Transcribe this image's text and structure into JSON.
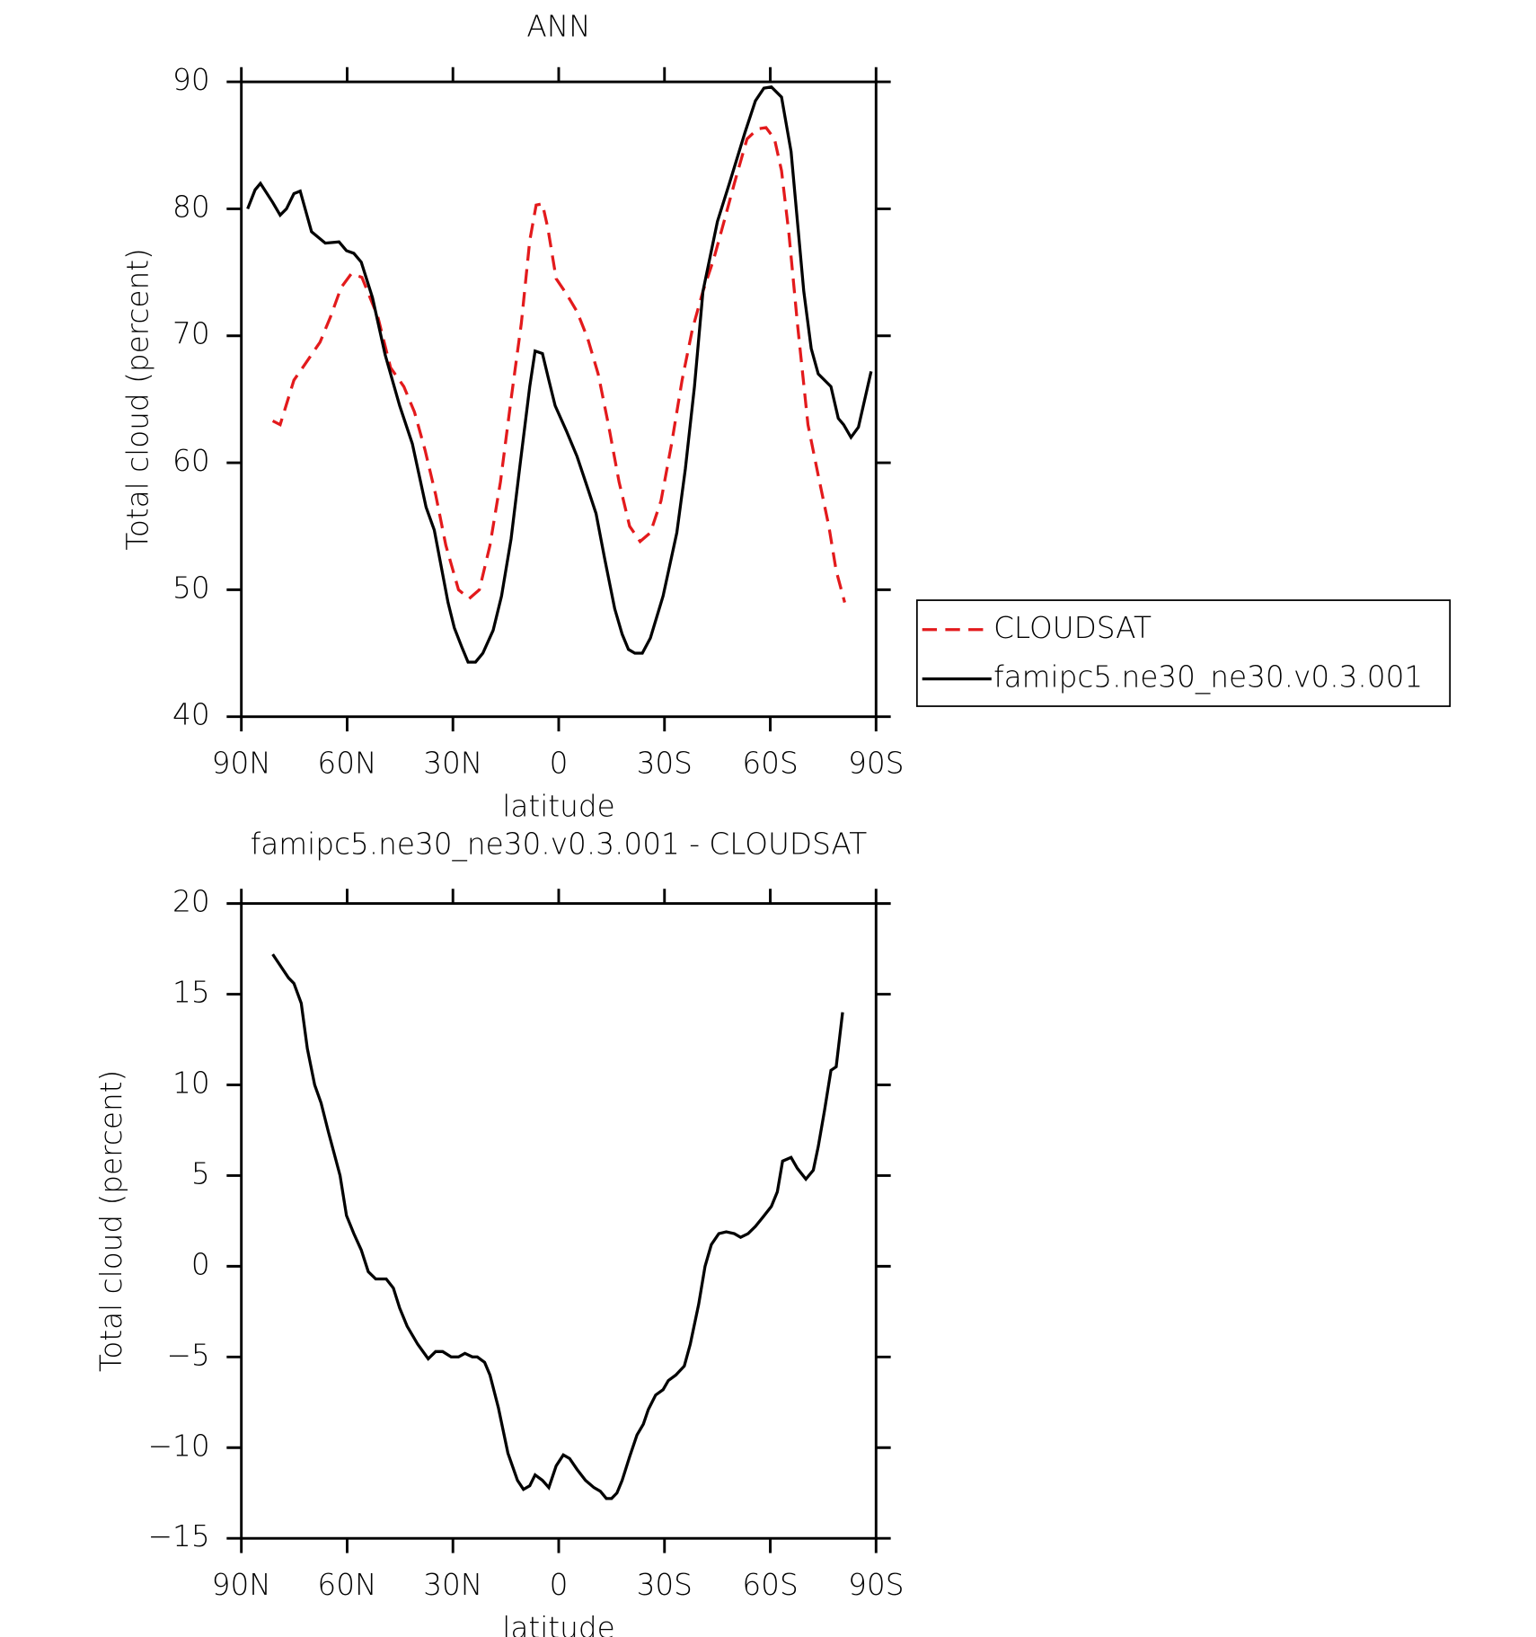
{
  "chart_data": [
    {
      "type": "line",
      "title": "ANN",
      "xlabel": "latitude",
      "ylabel": "Total cloud (percent)",
      "xlim": [
        90,
        -90
      ],
      "xticks": [
        {
          "value": 90,
          "label": "90N"
        },
        {
          "value": 60,
          "label": "60N"
        },
        {
          "value": 30,
          "label": "30N"
        },
        0,
        {
          "value": -30,
          "label": "30S"
        },
        {
          "value": -60,
          "label": "60S"
        },
        {
          "value": -90,
          "label": "90S"
        }
      ],
      "ylim": [
        40,
        90
      ],
      "yticks": [
        40,
        50,
        60,
        70,
        80,
        90
      ],
      "legend": "outside-right",
      "series": [
        {
          "name": "CLOUDSAT",
          "color": "#e31a1c",
          "dash": "dashed",
          "x": [
            81.1,
            79,
            75.1,
            72.1,
            67.7,
            64.7,
            61.7,
            58.8,
            55.8,
            51.3,
            47.7,
            43.9,
            40.9,
            37.9,
            34.9,
            32,
            28.4,
            25.4,
            22.5,
            19.5,
            16.5,
            13.5,
            10.6,
            8.2,
            6.4,
            4.6,
            3.1,
            0.7,
            -2.2,
            -5.2,
            -8.2,
            -11.2,
            -14.1,
            -17.1,
            -20.1,
            -23.1,
            -26,
            -29,
            -32,
            -35,
            -37.9,
            -40.9,
            -43.9,
            -46.9,
            -49.8,
            -53.4,
            -56.4,
            -58.8,
            -61.2,
            -63.2,
            -65.3,
            -67.7,
            -70.7,
            -73.6,
            -76.6,
            -78.7,
            -81.1
          ],
          "values": [
            63.3,
            63,
            66.5,
            67.7,
            69.5,
            71.5,
            73.8,
            74.9,
            74.6,
            71.5,
            67.5,
            66,
            64,
            61,
            57.5,
            53.5,
            50,
            49.3,
            50,
            53.5,
            58.5,
            65,
            71,
            77.5,
            80.3,
            80.4,
            78.5,
            74.5,
            73.3,
            71.9,
            69.8,
            67,
            63,
            58.5,
            55,
            53.8,
            54.5,
            57,
            61.5,
            66.5,
            70.5,
            73.5,
            76,
            79,
            82,
            85.5,
            86.3,
            86.4,
            85.5,
            83,
            78,
            71,
            63,
            59,
            55,
            51.5,
            49
          ]
        },
        {
          "name": "famipc5.ne30_ne30.v0.3.001",
          "color": "#000000",
          "dash": "solid",
          "x": [
            88.2,
            86.1,
            84.6,
            81.1,
            79,
            77.2,
            75.1,
            73.3,
            70.1,
            66.2,
            62.3,
            60.2,
            58.1,
            56,
            52.8,
            49.2,
            45.1,
            41.5,
            37.6,
            35.3,
            31.4,
            29.6,
            27.5,
            25.7,
            23.6,
            21.5,
            18.6,
            16.2,
            13.5,
            10.9,
            8.2,
            6.7,
            4.6,
            2.8,
            1,
            -2.2,
            -5.2,
            -8.2,
            -10.6,
            -13,
            -15.9,
            -18,
            -19.8,
            -21.6,
            -23.7,
            -26,
            -29.6,
            -33.5,
            -35.9,
            -38.5,
            -40.9,
            -45,
            -48.4,
            -52.8,
            -55.8,
            -58.2,
            -60.3,
            -63.2,
            -65.9,
            -69.5,
            -71.6,
            -73.6,
            -77.2,
            -79.3,
            -80.8,
            -82.9,
            -85,
            -88.6
          ],
          "values": [
            80,
            81.5,
            82,
            80.5,
            79.5,
            80,
            81.2,
            81.4,
            78.2,
            77.3,
            77.4,
            76.7,
            76.5,
            75.8,
            73,
            68.5,
            64.5,
            61.5,
            56.5,
            54.7,
            49,
            47,
            45.5,
            44.3,
            44.3,
            45,
            46.8,
            49.5,
            54,
            60,
            66,
            68.8,
            68.6,
            66.5,
            64.5,
            62.5,
            60.5,
            58,
            56,
            52.5,
            48.5,
            46.5,
            45.3,
            45,
            45,
            46.2,
            49.5,
            54.5,
            59.5,
            66,
            73.5,
            79,
            82,
            86,
            88.5,
            89.5,
            89.6,
            88.8,
            84.5,
            73.5,
            69,
            67,
            66,
            63.5,
            63,
            62,
            62.8,
            67.2
          ]
        }
      ]
    },
    {
      "type": "line",
      "title": "famipc5.ne30_ne30.v0.3.001 - CLOUDSAT",
      "xlabel": "latitude",
      "ylabel": "Total cloud (percent)",
      "xlim": [
        90,
        -90
      ],
      "xticks": [
        {
          "value": 90,
          "label": "90N"
        },
        {
          "value": 60,
          "label": "60N"
        },
        {
          "value": 30,
          "label": "30N"
        },
        0,
        {
          "value": -30,
          "label": "30S"
        },
        {
          "value": -60,
          "label": "60S"
        },
        {
          "value": -90,
          "label": "90S"
        }
      ],
      "ylim": [
        -15,
        20
      ],
      "yticks": [
        {
          "value": -15,
          "label": "−15"
        },
        {
          "value": -10,
          "label": "−10"
        },
        {
          "value": -5,
          "label": "−5"
        },
        0,
        5,
        10,
        15,
        20
      ],
      "series": [
        {
          "color": "#000000",
          "dash": "solid",
          "x": [
            81.1,
            78.7,
            76.6,
            75.1,
            73,
            71.3,
            69.2,
            67.4,
            65.3,
            63.8,
            62,
            60.2,
            58.1,
            56,
            54,
            51.9,
            48.9,
            46.9,
            45.1,
            43,
            40,
            37,
            34.9,
            32.9,
            30.5,
            28.4,
            26.6,
            24.5,
            23.1,
            21,
            19.5,
            17.1,
            14.4,
            11.7,
            10,
            8.2,
            6.7,
            4.6,
            2.8,
            0.7,
            -1.3,
            -3.1,
            -5.2,
            -7.6,
            -10,
            -11.8,
            -13.5,
            -15,
            -16.5,
            -18,
            -20.1,
            -22.2,
            -24,
            -25.4,
            -27.5,
            -29.6,
            -31.1,
            -33.2,
            -35.6,
            -37.3,
            -39.7,
            -41.5,
            -43.3,
            -45.4,
            -47.5,
            -49.8,
            -51.6,
            -53.7,
            -55.8,
            -57.9,
            -60.3,
            -62,
            -63.5,
            -65.9,
            -67.7,
            -70.1,
            -72.2,
            -73.6,
            -75.4,
            -77.2,
            -78.7,
            -80.5
          ],
          "values": [
            17.2,
            16.5,
            15.9,
            15.6,
            14.5,
            12,
            10,
            9,
            7.4,
            6.3,
            5,
            2.8,
            1.8,
            0.9,
            -0.3,
            -0.7,
            -0.7,
            -1.2,
            -2.3,
            -3.3,
            -4.3,
            -5.1,
            -4.7,
            -4.7,
            -5,
            -5,
            -4.8,
            -5,
            -5,
            -5.3,
            -6,
            -7.8,
            -10.3,
            -11.8,
            -12.3,
            -12.1,
            -11.5,
            -11.8,
            -12.2,
            -11,
            -10.4,
            -10.6,
            -11.2,
            -11.8,
            -12.2,
            -12.4,
            -12.8,
            -12.8,
            -12.5,
            -11.8,
            -10.5,
            -9.3,
            -8.7,
            -7.9,
            -7.1,
            -6.8,
            -6.3,
            -6,
            -5.5,
            -4.3,
            -2.1,
            0,
            1.2,
            1.8,
            1.9,
            1.8,
            1.6,
            1.8,
            2.2,
            2.7,
            3.3,
            4.1,
            5.8,
            6,
            5.4,
            4.8,
            5.3,
            6.6,
            8.6,
            10.8,
            11,
            14
          ]
        }
      ]
    }
  ]
}
